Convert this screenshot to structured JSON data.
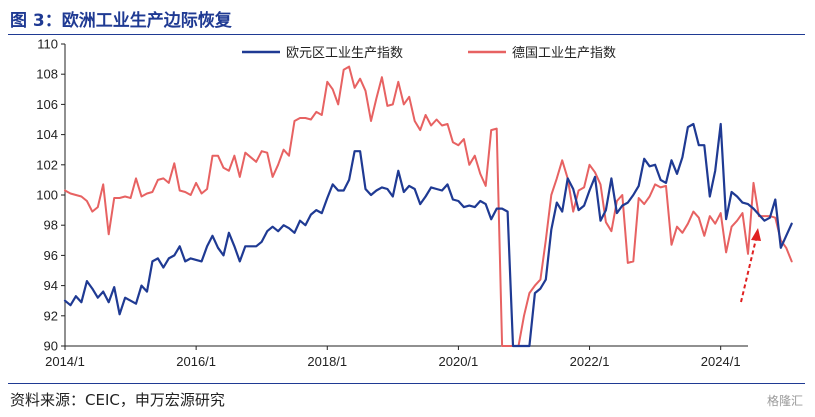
{
  "title": "图 3：欧洲工业生产边际恢复",
  "source": "资料来源：CEIC，申万宏源研究",
  "watermark": "格隆汇",
  "chart_data": {
    "type": "line",
    "ylim": [
      90,
      110
    ],
    "yticks": [
      90,
      92,
      94,
      96,
      98,
      100,
      102,
      104,
      106,
      108,
      110
    ],
    "xlim": [
      "2014-01",
      "2024-06"
    ],
    "xticks": [
      "2014/1",
      "2016/1",
      "2018/1",
      "2020/1",
      "2022/1",
      "2024/1"
    ],
    "legend_position": "top",
    "annotation": "red dashed upward arrow near latest values",
    "series": [
      {
        "name": "欧元区工业生产指数",
        "color": "#1f3a93",
        "values": [
          93.0,
          92.7,
          93.3,
          92.9,
          94.3,
          93.8,
          93.2,
          93.6,
          92.9,
          93.9,
          92.1,
          93.2,
          93.0,
          92.8,
          94.0,
          93.6,
          95.6,
          95.8,
          95.2,
          95.8,
          96.0,
          96.6,
          95.6,
          95.8,
          95.7,
          95.6,
          96.6,
          97.3,
          96.5,
          96.0,
          97.5,
          96.6,
          95.6,
          96.6,
          96.6,
          96.6,
          96.9,
          97.6,
          97.9,
          97.6,
          98.0,
          97.8,
          97.5,
          98.3,
          98.0,
          98.7,
          99.0,
          98.8,
          99.8,
          100.7,
          100.3,
          100.3,
          101.0,
          102.9,
          102.9,
          100.4,
          100.0,
          100.3,
          100.5,
          100.4,
          99.9,
          101.6,
          100.2,
          100.6,
          100.4,
          99.4,
          99.9,
          100.5,
          100.4,
          100.3,
          100.7,
          99.7,
          99.6,
          99.2,
          99.3,
          99.2,
          99.6,
          99.4,
          98.4,
          99.1,
          99.1,
          98.9,
          90.0,
          90.0,
          90.0,
          90.0,
          93.5,
          93.8,
          94.4,
          97.7,
          99.5,
          98.9,
          101.1,
          100.4,
          99.0,
          99.3,
          100.3,
          101.2,
          98.3,
          99.0,
          101.1,
          98.8,
          99.3,
          99.5,
          100.0,
          100.6,
          102.4,
          101.9,
          102.0,
          101.0,
          100.8,
          102.3,
          101.4,
          102.5,
          104.5,
          104.7,
          103.3,
          103.3,
          99.9,
          101.6,
          104.7,
          98.4,
          100.2,
          99.9,
          99.5,
          99.4,
          99.1,
          98.7,
          98.3,
          98.5,
          99.7,
          96.5,
          97.3,
          98.1
        ]
      },
      {
        "name": "德国工业生产指数",
        "color": "#e76262",
        "values": [
          100.3,
          100.1,
          100.0,
          99.9,
          99.6,
          98.9,
          99.2,
          100.7,
          97.4,
          99.8,
          99.8,
          99.9,
          99.8,
          101.1,
          99.9,
          100.1,
          100.2,
          101.0,
          101.1,
          100.8,
          102.1,
          100.3,
          100.2,
          100.0,
          100.8,
          100.1,
          100.4,
          102.6,
          102.6,
          101.8,
          101.6,
          102.6,
          101.2,
          102.8,
          102.5,
          102.2,
          102.9,
          102.8,
          101.2,
          102.0,
          103.0,
          102.6,
          104.9,
          105.1,
          105.1,
          105.0,
          105.5,
          105.3,
          107.5,
          107.0,
          106.0,
          108.3,
          108.5,
          107.1,
          107.7,
          106.9,
          104.9,
          106.4,
          107.8,
          105.9,
          106.0,
          107.5,
          106.0,
          106.5,
          104.9,
          104.3,
          105.3,
          104.6,
          105.0,
          104.6,
          104.7,
          103.5,
          103.3,
          103.7,
          102.0,
          102.6,
          101.4,
          100.6,
          104.3,
          104.4,
          90.0,
          90.0,
          90.0,
          90.0,
          92.0,
          93.5,
          94.0,
          94.4,
          97.0,
          100.0,
          101.1,
          102.3,
          101.1,
          98.9,
          100.3,
          100.5,
          102.0,
          101.5,
          100.7,
          98.2,
          97.6,
          99.6,
          100.0,
          95.5,
          95.6,
          99.8,
          99.4,
          99.9,
          100.7,
          100.5,
          100.6,
          96.7,
          97.9,
          97.5,
          98.1,
          98.9,
          98.5,
          97.3,
          98.6,
          98.1,
          98.8,
          96.2,
          97.9,
          98.3,
          98.8,
          96.1,
          100.8,
          98.6,
          98.6,
          98.6,
          98.5,
          97.0,
          96.5,
          95.6
        ]
      }
    ]
  }
}
